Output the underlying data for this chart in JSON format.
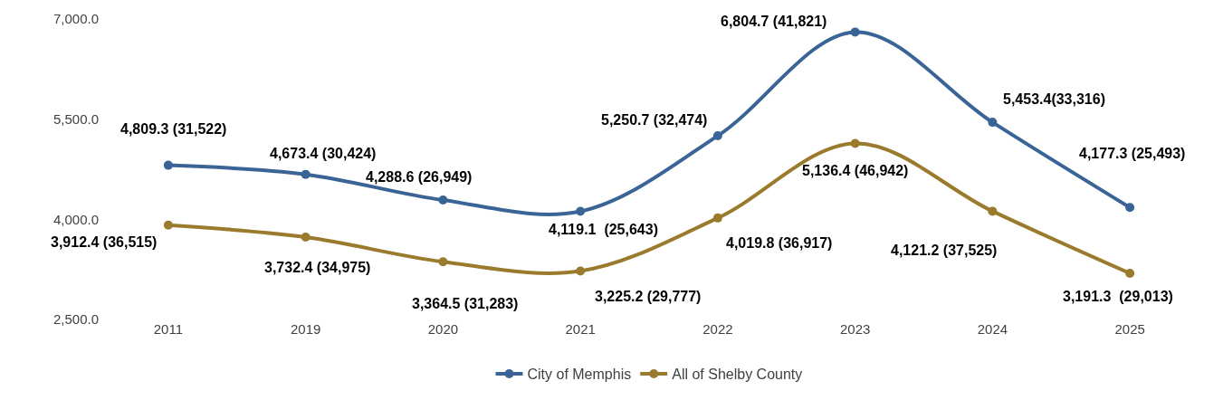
{
  "chart_data": {
    "type": "line",
    "categories": [
      "2011",
      "2019",
      "2020",
      "2021",
      "2022",
      "2023",
      "2024",
      "2025"
    ],
    "series": [
      {
        "name": "City of Memphis",
        "color": "#3b6496",
        "values": [
          4809.3,
          4673.4,
          4288.6,
          4119.1,
          5250.7,
          6804.7,
          5453.4,
          4177.3
        ],
        "value_labels": [
          "4,809.3 (31,522)",
          "4,673.4 (30,424)",
          "4,288.6 (26,949)",
          "4,119.1  (25,643)",
          "5,250.7 (32,474)",
          "6,804.7 (41,821)",
          "5,453.4(33,316)",
          "4,177.3 (25,493)"
        ]
      },
      {
        "name": "All of Shelby County",
        "color": "#9a7a2c",
        "values": [
          3912.4,
          3732.4,
          3364.5,
          3225.2,
          4019.8,
          5136.4,
          4121.2,
          3191.3
        ],
        "value_labels": [
          "3,912.4 (36,515)",
          "3,732.4 (34,975)",
          "3,364.5 (31,283)",
          "3,225.2 (29,777)",
          "4,019.8 (36,917)",
          "5,136.4 (46,942)",
          "4,121.2 (37,525)",
          "3,191.3  (29,013)"
        ]
      }
    ],
    "ylim": [
      2500,
      7000
    ],
    "yticks": [
      {
        "value": 2500,
        "label": "2,500.0"
      },
      {
        "value": 4000,
        "label": "4,000.0"
      },
      {
        "value": 5500,
        "label": "5,500.0"
      },
      {
        "value": 7000,
        "label": "7,000.0"
      }
    ],
    "legend": "bottom",
    "marker": "circle",
    "line_style": "solid"
  }
}
